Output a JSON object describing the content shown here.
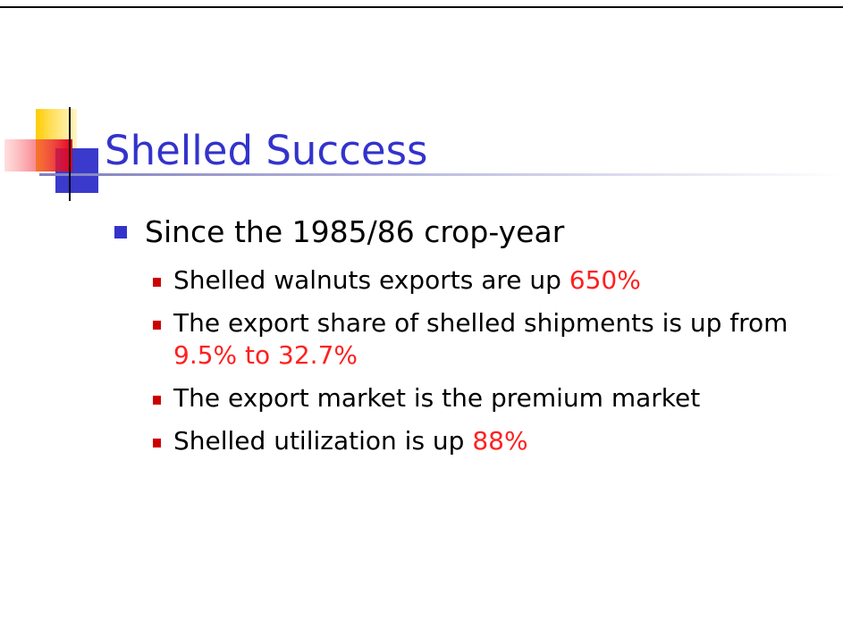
{
  "slide": {
    "title": "Shelled Success",
    "bullets": [
      {
        "text": "Since the 1985/86 crop-year",
        "sub": [
          {
            "text": "Shelled walnuts exports are up",
            "highlight": "650%"
          },
          {
            "text": "The export share of shelled shipments is up from",
            "highlight": "9.5% to 32.7%"
          },
          {
            "text": "The export market is the premium market"
          },
          {
            "text": "Shelled utilization is up",
            "highlight": "88%"
          }
        ]
      }
    ]
  }
}
